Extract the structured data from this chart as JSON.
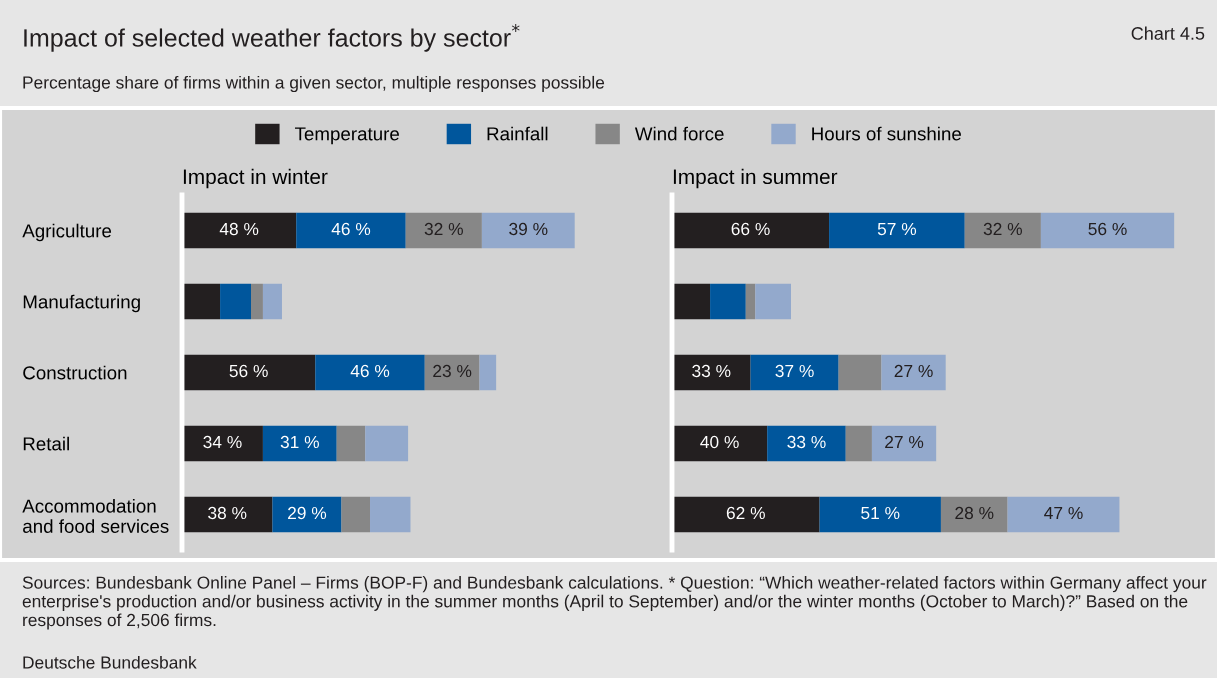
{
  "chart_data": [
    {
      "type": "bar",
      "orientation": "horizontal",
      "stacked": true,
      "title": "Impact in winter",
      "legend": "top",
      "tick_labels": "y",
      "annotations": [
        "Impact of selected weather factors by sector$^{*}$",
        "Chart 4.5",
        "Percentage share of firms within a given sector, multiple responses possible",
        "Sources: Bundesbank Online Panel – Firms (BOP-F) and Bundesbank calculations. * Question: “Which weather-related factors within Germany affect your enterprise's production and/or business activity in the summer months (April to September) and/or the winter months (October to March)?” Based on the responses of 2,506 firms.",
        "Deutsche Bundesbank"
      ],
      "categories": [
        "Agriculture",
        "Manufacturing",
        "Construction",
        "Retail",
        "Accommodation\nand food services"
      ],
      "series": [
        {
          "name": "Temperature",
          "color": "#231f20",
          "values": [
            48,
            16,
            56,
            34,
            38
          ],
          "value_labels": [
            "48 %",
            null,
            "56 %",
            "34 %",
            "38 %"
          ]
        },
        {
          "name": "Rainfall",
          "color": "#00569c",
          "values": [
            46,
            13,
            46,
            31,
            29
          ],
          "value_labels": [
            "46 %",
            null,
            "46 %",
            "31 %",
            "29 %"
          ]
        },
        {
          "name": "Wind force",
          "color": "#878787",
          "values": [
            32,
            5,
            23,
            12,
            12
          ],
          "value_labels": [
            "32 %",
            null,
            "23 %",
            null,
            null
          ]
        },
        {
          "name": "Hours of sunshine",
          "color": "#93a9cc",
          "values": [
            39,
            8,
            7,
            18,
            17
          ],
          "value_labels": [
            "39 %",
            null,
            null,
            null,
            null
          ]
        }
      ]
    },
    {
      "type": "bar",
      "orientation": "horizontal",
      "stacked": true,
      "title": "Impact in summer",
      "tick_labels": false,
      "categories": [
        null,
        null,
        null,
        null,
        null
      ],
      "series": [
        {
          "color": "#231f20",
          "values": [
            66,
            16,
            33,
            40,
            62
          ],
          "value_labels": [
            "66 %",
            null,
            "33 %",
            "40 %",
            "62 %"
          ]
        },
        {
          "color": "#00569c",
          "values": [
            57,
            15,
            37,
            33,
            51
          ],
          "value_labels": [
            "57 %",
            null,
            "37 %",
            "33 %",
            "51 %"
          ]
        },
        {
          "color": "#878787",
          "values": [
            32,
            4,
            18,
            11,
            28
          ],
          "value_labels": [
            "32 %",
            null,
            null,
            null,
            "28 %"
          ]
        },
        {
          "color": "#93a9cc",
          "values": [
            56,
            15,
            27,
            27,
            47
          ],
          "value_labels": [
            "56 %",
            null,
            "27 %",
            "27 %",
            "47 %"
          ]
        }
      ]
    }
  ]
}
